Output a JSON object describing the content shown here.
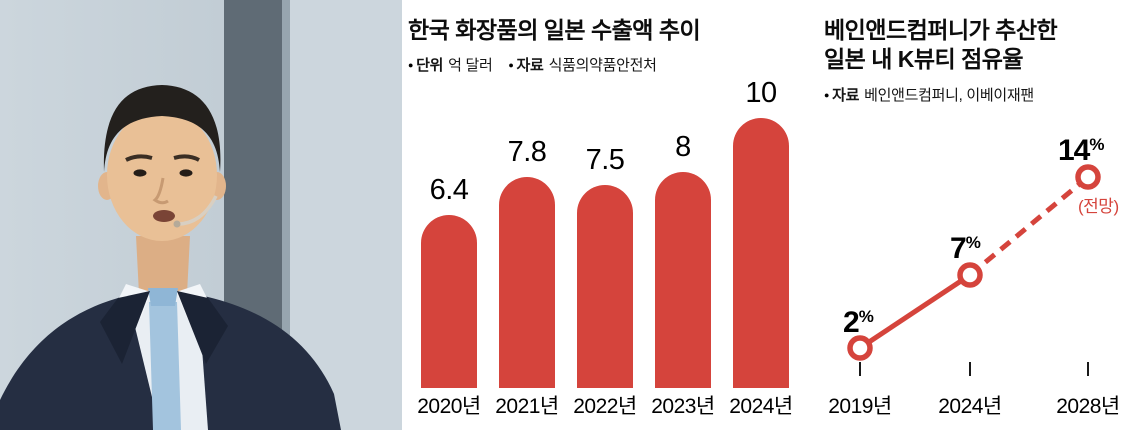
{
  "accent_color": "#d5443c",
  "chart_data": [
    {
      "type": "bar",
      "title": "한국 화장품의 일본 수출액 추이",
      "meta": [
        {
          "label": "단위",
          "value": "억 달러"
        },
        {
          "label": "자료",
          "value": "식품의약품안전처"
        }
      ],
      "categories": [
        "2020년",
        "2021년",
        "2022년",
        "2023년",
        "2024년"
      ],
      "values": [
        6.4,
        7.8,
        7.5,
        8,
        10
      ],
      "value_labels": [
        "6.4",
        "7.8",
        "7.5",
        "8",
        "10"
      ],
      "bar_color": "#d5443c",
      "ylim": [
        0,
        10
      ],
      "grid": false,
      "legend_position": "none"
    },
    {
      "type": "line",
      "title_lines": [
        "베인앤드컴퍼니가 추산한",
        "일본 내 K뷰티 점유율"
      ],
      "meta": [
        {
          "label": "자료",
          "value": "베인앤드컴퍼니, 이베이재팬"
        }
      ],
      "categories": [
        "2019년",
        "2024년",
        "2028년"
      ],
      "values": [
        2,
        7,
        14
      ],
      "value_suffix": "%",
      "annotation": "(전망)",
      "line_color": "#d5443c",
      "dashed_segment_from_index": 1,
      "grid": false,
      "legend_position": "none"
    }
  ]
}
